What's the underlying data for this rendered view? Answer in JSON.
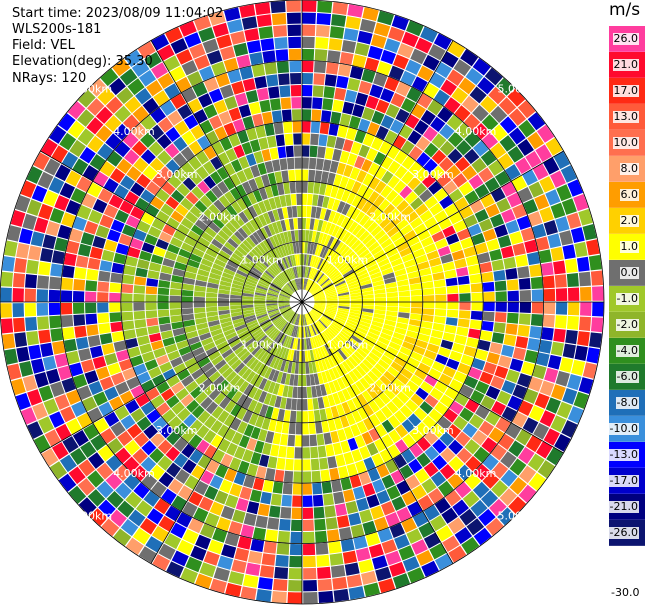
{
  "header": {
    "start_time": "Start time: 2023/08/09 11:04:02",
    "instrument": "WLS200s-181",
    "field": "Field: VEL",
    "elevation": "Elevation(deg): 35.30",
    "nrays": "NRays: 120"
  },
  "colorbar": {
    "unit": "m/s",
    "levels": [
      {
        "label": "26.0",
        "color": "#ff3d9e"
      },
      {
        "label": "21.0",
        "color": "#ff0a2e"
      },
      {
        "label": "17.0",
        "color": "#ff2a14"
      },
      {
        "label": "13.0",
        "color": "#ff5a3a"
      },
      {
        "label": "10.0",
        "color": "#ff6f4f"
      },
      {
        "label": "8.0",
        "color": "#ff9f6a"
      },
      {
        "label": "6.0",
        "color": "#ff9d00"
      },
      {
        "label": "2.0",
        "color": "#ffd000"
      },
      {
        "label": "1.0",
        "color": "#ffff00"
      },
      {
        "label": "0.0",
        "color": "#6f6f6f"
      },
      {
        "label": "-1.0",
        "color": "#a0c82a"
      },
      {
        "label": "-2.0",
        "color": "#8fb52a"
      },
      {
        "label": "-4.0",
        "color": "#2f8f1e"
      },
      {
        "label": "-6.0",
        "color": "#1f7a2c"
      },
      {
        "label": "-8.0",
        "color": "#1f6fb8"
      },
      {
        "label": "-10.0",
        "color": "#3a8fdc"
      },
      {
        "label": "-13.0",
        "color": "#0000ff"
      },
      {
        "label": "-17.0",
        "color": "#0000cc"
      },
      {
        "label": "-21.0",
        "color": "#000080"
      },
      {
        "label": "-26.0",
        "color": "#0c1470"
      }
    ],
    "bottom_label": "-30.0"
  },
  "range_rings": {
    "labels": [
      "1.00km",
      "2.00km",
      "3.00km",
      "4.00km",
      "5.00km"
    ]
  },
  "plot": {
    "nrays": 120,
    "ngates": 25,
    "max_range_km": 5.0
  }
}
